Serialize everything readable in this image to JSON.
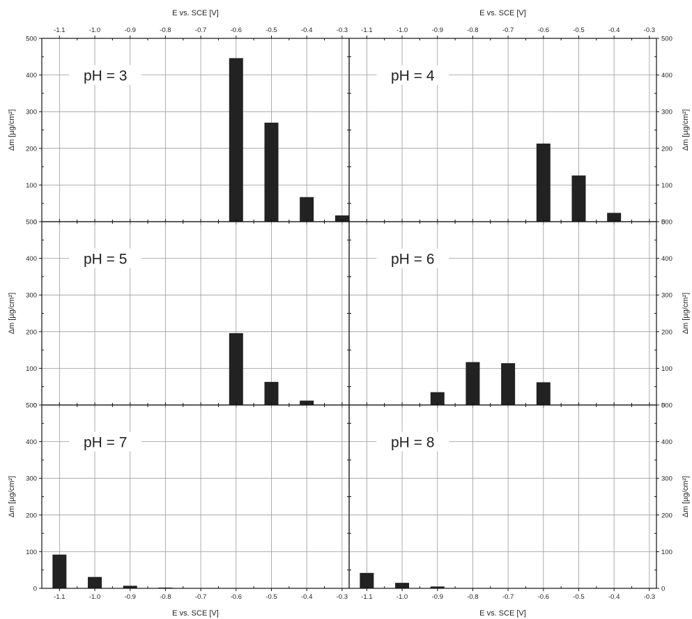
{
  "chart_data": [
    {
      "type": "bar",
      "title": "pH = 3",
      "x": [
        -1.1,
        -1.0,
        -0.9,
        -0.8,
        -0.7,
        -0.6,
        -0.5,
        -0.4,
        -0.3
      ],
      "values": [
        0,
        0,
        0,
        0,
        0,
        446,
        270,
        67,
        17
      ]
    },
    {
      "type": "bar",
      "title": "pH = 4",
      "x": [
        -1.1,
        -1.0,
        -0.9,
        -0.8,
        -0.7,
        -0.6,
        -0.5,
        -0.4,
        -0.3
      ],
      "values": [
        0,
        0,
        0,
        0,
        0,
        213,
        126,
        24,
        0
      ]
    },
    {
      "type": "bar",
      "title": "pH = 5",
      "x": [
        -1.1,
        -1.0,
        -0.9,
        -0.8,
        -0.7,
        -0.6,
        -0.5,
        -0.4,
        -0.3
      ],
      "values": [
        0,
        0,
        0,
        0,
        0,
        196,
        63,
        12,
        0
      ]
    },
    {
      "type": "bar",
      "title": "pH = 6",
      "x": [
        -1.1,
        -1.0,
        -0.9,
        -0.8,
        -0.7,
        -0.6,
        -0.5,
        -0.4,
        -0.3
      ],
      "values": [
        0,
        0,
        35,
        117,
        114,
        62,
        0,
        0,
        0
      ]
    },
    {
      "type": "bar",
      "title": "pH = 7",
      "x": [
        -1.1,
        -1.0,
        -0.9,
        -0.8,
        -0.7,
        -0.6,
        -0.5,
        -0.4,
        -0.3
      ],
      "values": [
        92,
        31,
        7,
        2,
        0,
        0,
        0,
        0,
        0
      ]
    },
    {
      "type": "bar",
      "title": "pH = 8",
      "x": [
        -1.1,
        -1.0,
        -0.9,
        -0.8,
        -0.7,
        -0.6,
        -0.5,
        -0.4,
        -0.3
      ],
      "values": [
        42,
        15,
        5,
        0,
        0,
        0,
        0,
        0,
        0
      ]
    }
  ],
  "axes": {
    "xlabel": "E vs. SCE [V]",
    "ylabel": "Δm [µg/cm²]",
    "xlim": [
      -1.15,
      -0.28
    ],
    "ylim": [
      0,
      500
    ],
    "x_ticks": [
      -1.1,
      -1.0,
      -0.9,
      -0.8,
      -0.7,
      -0.6,
      -0.5,
      -0.4,
      -0.3
    ],
    "x_tick_labels": [
      "-1.1",
      "-1.0",
      "-0.9",
      "-0.8",
      "-0.7",
      "-0.6",
      "-0.5",
      "-0.4",
      "-0.3"
    ],
    "y_ticks": [
      0,
      100,
      200,
      300,
      400,
      500
    ],
    "y_tick_labels": [
      "0",
      "100",
      "200",
      "300",
      "400",
      "500"
    ],
    "grid": true,
    "bar_color": "#222222",
    "grid_color": "#999999"
  }
}
